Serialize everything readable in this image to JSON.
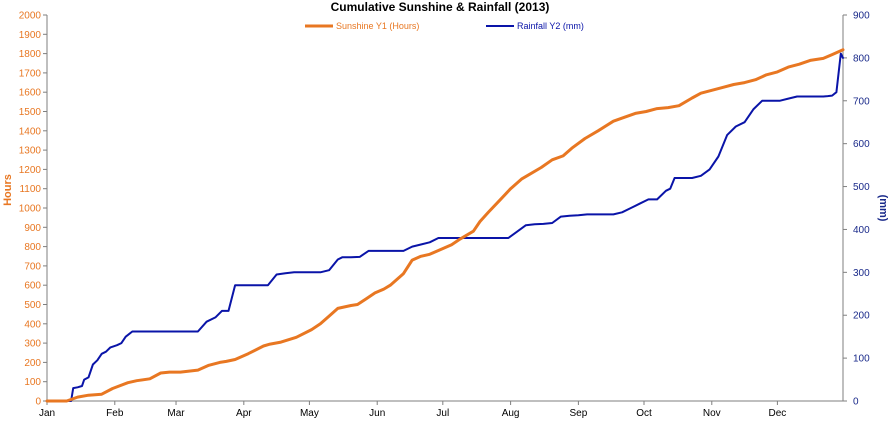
{
  "chart_data": {
    "type": "line",
    "title": "Cumulative Sunshine & Rainfall (2013)",
    "xlabel": "",
    "x_tick_labels": [
      "Jan",
      "Feb",
      "Mar",
      "Apr",
      "May",
      "Jun",
      "Jul",
      "Aug",
      "Sep",
      "Oct",
      "Nov",
      "Dec"
    ],
    "y1": {
      "label": "Hours",
      "range": [
        0,
        2000
      ],
      "step": 100
    },
    "y2": {
      "label": "(mm)",
      "range": [
        0,
        900
      ],
      "step": 100
    },
    "legend_position": "top",
    "grid": false,
    "colors": {
      "sunshine": "#E87722",
      "rainfall": "#0A14A8",
      "y1_axis": "#E87722",
      "y2_axis": "#1A2A8A",
      "title": "#000000"
    },
    "x_unit": "day of year",
    "series": [
      {
        "name": "Sunshine Y1 (Hours)",
        "axis": "y1",
        "x": [
          1,
          8,
          10,
          15,
          20,
          26,
          31,
          38,
          42,
          48,
          53,
          57,
          62,
          70,
          75,
          80,
          83,
          87,
          93,
          100,
          103,
          108,
          115,
          122,
          126,
          130,
          134,
          140,
          143,
          147,
          151,
          155,
          158,
          164,
          168,
          172,
          176,
          180,
          186,
          190,
          196,
          199,
          203,
          208,
          213,
          218,
          221,
          227,
          232,
          237,
          241,
          247,
          253,
          260,
          265,
          270,
          275,
          280,
          285,
          290,
          296,
          300,
          305,
          310,
          315,
          320,
          325,
          330,
          335,
          340,
          345,
          350,
          356,
          360,
          365
        ],
        "values": [
          0,
          0,
          0,
          20,
          30,
          35,
          65,
          95,
          105,
          115,
          145,
          150,
          150,
          160,
          185,
          200,
          205,
          215,
          245,
          285,
          295,
          305,
          330,
          370,
          400,
          440,
          480,
          495,
          500,
          530,
          560,
          580,
          600,
          660,
          730,
          750,
          760,
          780,
          810,
          840,
          880,
          930,
          980,
          1040,
          1100,
          1150,
          1170,
          1210,
          1250,
          1270,
          1310,
          1360,
          1400,
          1450,
          1470,
          1490,
          1500,
          1515,
          1520,
          1530,
          1570,
          1595,
          1610,
          1625,
          1640,
          1650,
          1665,
          1690,
          1705,
          1730,
          1745,
          1765,
          1775,
          1795,
          1820
        ]
      },
      {
        "name": "Rainfall Y2 (mm)",
        "axis": "y2",
        "x": [
          1,
          12,
          13,
          15,
          17,
          18,
          20,
          22,
          24,
          26,
          28,
          30,
          33,
          35,
          37,
          40,
          43,
          46,
          50,
          54,
          58,
          62,
          66,
          70,
          74,
          78,
          81,
          84,
          87,
          89,
          90,
          94,
          98,
          102,
          106,
          110,
          114,
          118,
          122,
          126,
          130,
          134,
          136,
          140,
          144,
          148,
          152,
          156,
          160,
          164,
          168,
          172,
          176,
          180,
          186,
          190,
          196,
          200,
          204,
          208,
          212,
          216,
          220,
          224,
          228,
          232,
          236,
          240,
          244,
          248,
          252,
          256,
          260,
          264,
          268,
          272,
          276,
          280,
          284,
          286,
          288,
          292,
          296,
          300,
          304,
          308,
          312,
          316,
          320,
          324,
          328,
          332,
          336,
          340,
          344,
          348,
          352,
          356,
          358,
          360,
          362,
          364,
          365
        ],
        "values": [
          0,
          0,
          30,
          32,
          35,
          50,
          55,
          85,
          95,
          110,
          115,
          125,
          130,
          135,
          150,
          162,
          162,
          162,
          162,
          162,
          162,
          162,
          162,
          162,
          185,
          195,
          210,
          210,
          270,
          270,
          270,
          270,
          270,
          270,
          295,
          298,
          300,
          300,
          300,
          300,
          305,
          330,
          335,
          335,
          336,
          350,
          350,
          350,
          350,
          350,
          360,
          365,
          370,
          380,
          380,
          380,
          380,
          380,
          380,
          380,
          380,
          395,
          410,
          412,
          413,
          415,
          430,
          432,
          433,
          435,
          435,
          435,
          435,
          440,
          450,
          460,
          470,
          470,
          490,
          495,
          520,
          520,
          520,
          525,
          540,
          570,
          620,
          640,
          650,
          680,
          700,
          700,
          700,
          705,
          710,
          710,
          710,
          710,
          711,
          712,
          720,
          810,
          800
        ]
      }
    ]
  }
}
